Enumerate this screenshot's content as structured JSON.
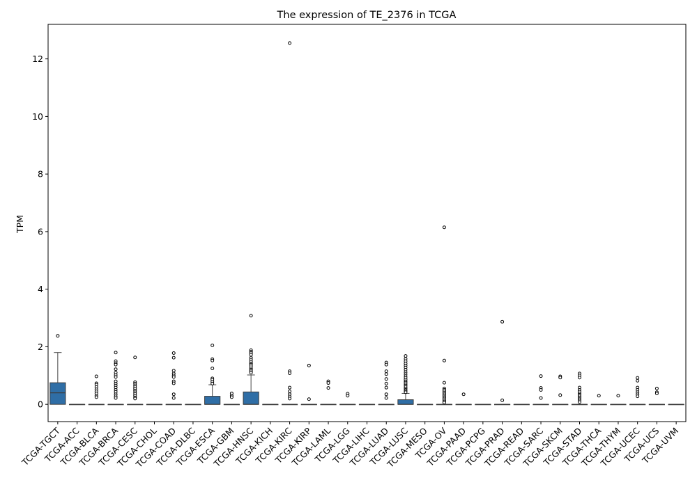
{
  "chart_data": {
    "type": "box",
    "title": "The expression of TE_2376 in TCGA",
    "xlabel": "",
    "ylabel": "TPM",
    "ylim": [
      -0.6,
      13.2
    ],
    "yticks": [
      0,
      2,
      4,
      6,
      8,
      10,
      12
    ],
    "grid": false,
    "box_color": "#2f6ea6",
    "categories": [
      "TCGA-TGCT",
      "TCGA-ACC",
      "TCGA-BLCA",
      "TCGA-BRCA",
      "TCGA-CESC",
      "TCGA-CHOL",
      "TCGA-COAD",
      "TCGA-DLBC",
      "TCGA-ESCA",
      "TCGA-GBM",
      "TCGA-HNSC",
      "TCGA-KICH",
      "TCGA-KIRC",
      "TCGA-KIRP",
      "TCGA-LAML",
      "TCGA-LGG",
      "TCGA-LIHC",
      "TCGA-LUAD",
      "TCGA-LUSC",
      "TCGA-MESO",
      "TCGA-OV",
      "TCGA-PAAD",
      "TCGA-PCPG",
      "TCGA-PRAD",
      "TCGA-READ",
      "TCGA-SARC",
      "TCGA-SKCM",
      "TCGA-STAD",
      "TCGA-THCA",
      "TCGA-THYM",
      "TCGA-UCEC",
      "TCGA-UCS",
      "TCGA-UVM"
    ],
    "boxes": [
      {
        "min": 0,
        "q1": 0,
        "median": 0.4,
        "q3": 0.75,
        "max": 1.8,
        "outliers": [
          2.38
        ]
      },
      {
        "min": 0,
        "q1": 0,
        "median": 0,
        "q3": 0,
        "max": 0,
        "outliers": []
      },
      {
        "min": 0,
        "q1": 0,
        "median": 0,
        "q3": 0,
        "max": 0,
        "outliers": [
          0.97,
          0.73,
          0.68,
          0.6,
          0.52,
          0.45,
          0.38,
          0.3,
          0.25
        ]
      },
      {
        "min": 0,
        "q1": 0,
        "median": 0,
        "q3": 0,
        "max": 0,
        "outliers": [
          1.8,
          1.5,
          1.43,
          1.38,
          1.22,
          1.1,
          1.02,
          0.95,
          0.8,
          0.72,
          0.65,
          0.58,
          0.5,
          0.43,
          0.35,
          0.28,
          0.22
        ]
      },
      {
        "min": 0,
        "q1": 0,
        "median": 0,
        "q3": 0,
        "max": 0,
        "outliers": [
          1.63,
          0.77,
          0.72,
          0.66,
          0.6,
          0.54,
          0.48,
          0.42,
          0.36,
          0.3,
          0.24,
          0.2
        ]
      },
      {
        "min": 0,
        "q1": 0,
        "median": 0,
        "q3": 0,
        "max": 0,
        "outliers": []
      },
      {
        "min": 0,
        "q1": 0,
        "median": 0,
        "q3": 0,
        "max": 0,
        "outliers": [
          1.78,
          1.62,
          1.17,
          1.07,
          1.0,
          0.95,
          0.8,
          0.73,
          0.35,
          0.22
        ]
      },
      {
        "min": 0,
        "q1": 0,
        "median": 0,
        "q3": 0,
        "max": 0,
        "outliers": []
      },
      {
        "min": 0,
        "q1": 0,
        "median": 0,
        "q3": 0.28,
        "max": 0.68,
        "outliers": [
          2.05,
          1.57,
          1.52,
          1.25,
          0.9,
          0.85,
          0.78,
          0.72
        ]
      },
      {
        "min": 0,
        "q1": 0,
        "median": 0,
        "q3": 0,
        "max": 0,
        "outliers": [
          0.38,
          0.3,
          0.25
        ]
      },
      {
        "min": 0,
        "q1": 0,
        "median": 0,
        "q3": 0.43,
        "max": 1.02,
        "outliers": [
          3.08,
          1.88,
          1.83,
          1.78,
          1.72,
          1.62,
          1.55,
          1.48,
          1.42,
          1.38,
          1.32,
          1.25,
          1.2,
          1.15,
          1.1
        ]
      },
      {
        "min": 0,
        "q1": 0,
        "median": 0,
        "q3": 0,
        "max": 0,
        "outliers": []
      },
      {
        "min": 0,
        "q1": 0,
        "median": 0,
        "q3": 0,
        "max": 0,
        "outliers": [
          12.55,
          1.15,
          1.08,
          0.58,
          0.45,
          0.35,
          0.27,
          0.2
        ]
      },
      {
        "min": 0,
        "q1": 0,
        "median": 0,
        "q3": 0,
        "max": 0,
        "outliers": [
          1.35,
          0.18
        ]
      },
      {
        "min": 0,
        "q1": 0,
        "median": 0,
        "q3": 0,
        "max": 0,
        "outliers": [
          0.8,
          0.74,
          0.57
        ]
      },
      {
        "min": 0,
        "q1": 0,
        "median": 0,
        "q3": 0,
        "max": 0,
        "outliers": [
          0.37,
          0.3
        ]
      },
      {
        "min": 0,
        "q1": 0,
        "median": 0,
        "q3": 0,
        "max": 0,
        "outliers": []
      },
      {
        "min": 0,
        "q1": 0,
        "median": 0,
        "q3": 0,
        "max": 0,
        "outliers": [
          1.45,
          1.38,
          1.15,
          1.05,
          0.88,
          0.72,
          0.58,
          0.35,
          0.22
        ]
      },
      {
        "min": 0,
        "q1": 0,
        "median": 0,
        "q3": 0.16,
        "max": 0.38,
        "outliers": [
          1.68,
          1.58,
          1.5,
          1.42,
          1.35,
          1.28,
          1.2,
          1.12,
          1.05,
          0.98,
          0.92,
          0.86,
          0.8,
          0.75,
          0.7,
          0.65,
          0.6,
          0.55,
          0.5,
          0.46,
          0.42
        ]
      },
      {
        "min": 0,
        "q1": 0,
        "median": 0,
        "q3": 0,
        "max": 0,
        "outliers": []
      },
      {
        "min": 0,
        "q1": 0,
        "median": 0,
        "q3": 0,
        "max": 0,
        "outliers": [
          6.15,
          1.52,
          0.75,
          0.55,
          0.5,
          0.45,
          0.4,
          0.35,
          0.3,
          0.25,
          0.2,
          0.15,
          0.1,
          0.06
        ]
      },
      {
        "min": 0,
        "q1": 0,
        "median": 0,
        "q3": 0,
        "max": 0,
        "outliers": [
          0.35
        ]
      },
      {
        "min": 0,
        "q1": 0,
        "median": 0,
        "q3": 0,
        "max": 0,
        "outliers": []
      },
      {
        "min": 0,
        "q1": 0,
        "median": 0,
        "q3": 0,
        "max": 0,
        "outliers": [
          2.87,
          0.14
        ]
      },
      {
        "min": 0,
        "q1": 0,
        "median": 0,
        "q3": 0,
        "max": 0,
        "outliers": []
      },
      {
        "min": 0,
        "q1": 0,
        "median": 0,
        "q3": 0,
        "max": 0,
        "outliers": [
          0.98,
          0.57,
          0.5,
          0.22
        ]
      },
      {
        "min": 0,
        "q1": 0,
        "median": 0,
        "q3": 0,
        "max": 0,
        "outliers": [
          0.97,
          0.93,
          0.32
        ]
      },
      {
        "min": 0,
        "q1": 0,
        "median": 0,
        "q3": 0,
        "max": 0,
        "outliers": [
          1.07,
          1.0,
          0.93,
          0.58,
          0.5,
          0.44,
          0.38,
          0.33,
          0.28,
          0.23,
          0.18,
          0.13,
          0.08
        ]
      },
      {
        "min": 0,
        "q1": 0,
        "median": 0,
        "q3": 0,
        "max": 0,
        "outliers": [
          0.3
        ]
      },
      {
        "min": 0,
        "q1": 0,
        "median": 0,
        "q3": 0,
        "max": 0,
        "outliers": [
          0.3
        ]
      },
      {
        "min": 0,
        "q1": 0,
        "median": 0,
        "q3": 0,
        "max": 0,
        "outliers": [
          0.92,
          0.82,
          0.58,
          0.5,
          0.42,
          0.35,
          0.28
        ]
      },
      {
        "min": 0,
        "q1": 0,
        "median": 0,
        "q3": 0,
        "max": 0,
        "outliers": [
          0.55,
          0.42,
          0.38
        ]
      },
      {
        "min": 0,
        "q1": 0,
        "median": 0,
        "q3": 0,
        "max": 0,
        "outliers": []
      }
    ]
  }
}
